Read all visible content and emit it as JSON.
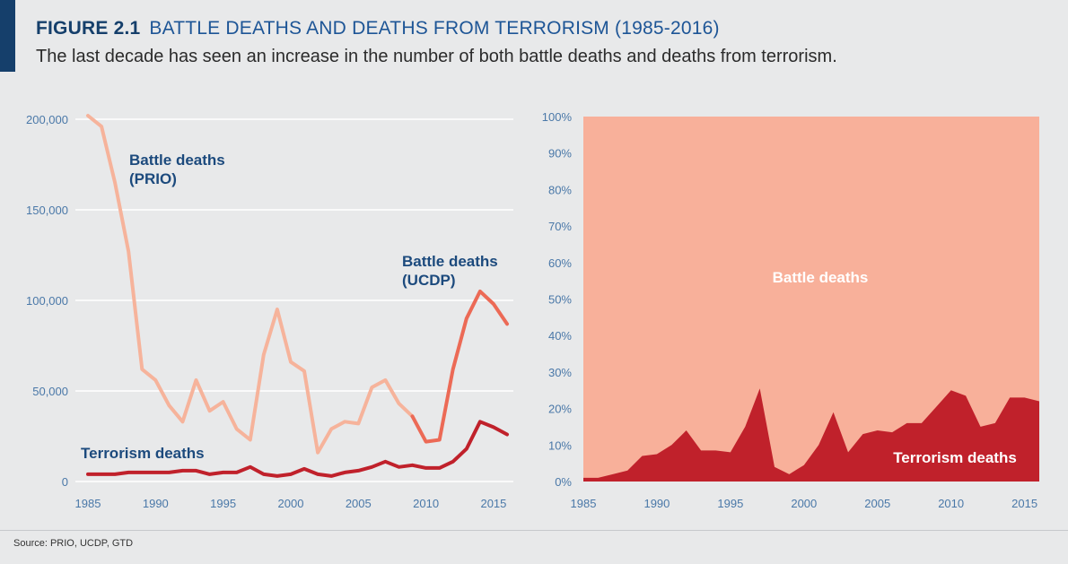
{
  "header": {
    "figure_number": "FIGURE 2.1",
    "figure_title": "BATTLE DEATHS AND DEATHS FROM TERRORISM (1985-2016)",
    "subtitle": "The last decade has seen an increase in the number of both battle deaths and deaths from terrorism."
  },
  "footer": {
    "source": "Source: PRIO, UCDP, GTD"
  },
  "colors": {
    "prio": "#f6b39b",
    "ucdp": "#ec6a56",
    "terrorism": "#c0212b",
    "battle_area": "#f8b09a",
    "gridline": "#ffffff",
    "tick_text": "#4a78a8",
    "label_text": "#1c4a7d"
  },
  "chart_data": [
    {
      "type": "line",
      "title": "",
      "xlabel": "",
      "ylabel": "",
      "xlim": [
        1985,
        2016
      ],
      "ylim": [
        0,
        200000
      ],
      "grid": true,
      "x_ticks": [
        1985,
        1990,
        1995,
        2000,
        2005,
        2010,
        2015
      ],
      "x_tick_labels": [
        "1985",
        "1990",
        "1995",
        "2000",
        "2005",
        "2010",
        "2015"
      ],
      "y_ticks": [
        0,
        50000,
        100000,
        150000,
        200000
      ],
      "y_tick_labels": [
        "0",
        "50,000",
        "100,000",
        "150,000",
        "200,000"
      ],
      "series": [
        {
          "name": "Battle deaths\n(PRIO)",
          "label_lines": [
            "Battle deaths",
            "(PRIO)"
          ],
          "x": [
            1985,
            1986,
            1987,
            1988,
            1989,
            1990,
            1991,
            1992,
            1993,
            1994,
            1995,
            1996,
            1997,
            1998,
            1999,
            2000,
            2001,
            2002,
            2003,
            2004,
            2005,
            2006,
            2007,
            2008,
            2009
          ],
          "values": [
            202000,
            196000,
            165000,
            127000,
            62000,
            56000,
            42000,
            33000,
            56000,
            39000,
            44000,
            29000,
            23000,
            70000,
            95000,
            66000,
            61000,
            16000,
            29000,
            33000,
            32000,
            52000,
            56000,
            43000,
            36000
          ]
        },
        {
          "name": "Battle deaths\n(UCDP)",
          "label_lines": [
            "Battle deaths",
            "(UCDP)"
          ],
          "x": [
            2009,
            2010,
            2011,
            2012,
            2013,
            2014,
            2015,
            2016
          ],
          "values": [
            36000,
            22000,
            23000,
            62000,
            90000,
            105000,
            98000,
            87000
          ]
        },
        {
          "name": "Terrorism deaths",
          "label_lines": [
            "Terrorism deaths"
          ],
          "x": [
            1985,
            1986,
            1987,
            1988,
            1989,
            1990,
            1991,
            1992,
            1993,
            1994,
            1995,
            1996,
            1997,
            1998,
            1999,
            2000,
            2001,
            2002,
            2003,
            2004,
            2005,
            2006,
            2007,
            2008,
            2009,
            2010,
            2011,
            2012,
            2013,
            2014,
            2015,
            2016
          ],
          "values": [
            4000,
            4000,
            4000,
            5000,
            5000,
            5000,
            5000,
            6000,
            6000,
            4000,
            5000,
            5000,
            8000,
            4000,
            3000,
            4000,
            7000,
            4000,
            3000,
            5000,
            6000,
            8000,
            11000,
            8000,
            9000,
            7500,
            7500,
            11000,
            18000,
            33000,
            30000,
            26000
          ]
        }
      ]
    },
    {
      "type": "area",
      "stacked": "percent",
      "title": "",
      "xlabel": "",
      "ylabel": "",
      "xlim": [
        1985,
        2016
      ],
      "ylim": [
        0,
        100
      ],
      "grid": false,
      "x_ticks": [
        1985,
        1990,
        1995,
        2000,
        2005,
        2010,
        2015
      ],
      "x_tick_labels": [
        "1985",
        "1990",
        "1995",
        "2000",
        "2005",
        "2010",
        "2015"
      ],
      "y_ticks": [
        0,
        10,
        20,
        30,
        40,
        50,
        60,
        70,
        80,
        90,
        100
      ],
      "y_tick_labels": [
        "0%",
        "10%",
        "20%",
        "30%",
        "40%",
        "50%",
        "60%",
        "70%",
        "80%",
        "90%",
        "100%"
      ],
      "series": [
        {
          "name": "Terrorism deaths",
          "x": [
            1985,
            1986,
            1987,
            1988,
            1989,
            1990,
            1991,
            1992,
            1993,
            1994,
            1995,
            1996,
            1997,
            1998,
            1999,
            2000,
            2001,
            2002,
            2003,
            2004,
            2005,
            2006,
            2007,
            2008,
            2009,
            2010,
            2011,
            2012,
            2013,
            2014,
            2015,
            2016
          ],
          "values": [
            1,
            1,
            2,
            3,
            7,
            7.5,
            10,
            14,
            8.5,
            8.5,
            8,
            15,
            25.5,
            4,
            2,
            4.5,
            10,
            19,
            8,
            13,
            14,
            13.5,
            16,
            16,
            20.5,
            25,
            23.5,
            15,
            16,
            23,
            23,
            22
          ]
        },
        {
          "name": "Battle deaths",
          "fill_to": 100
        }
      ]
    }
  ]
}
